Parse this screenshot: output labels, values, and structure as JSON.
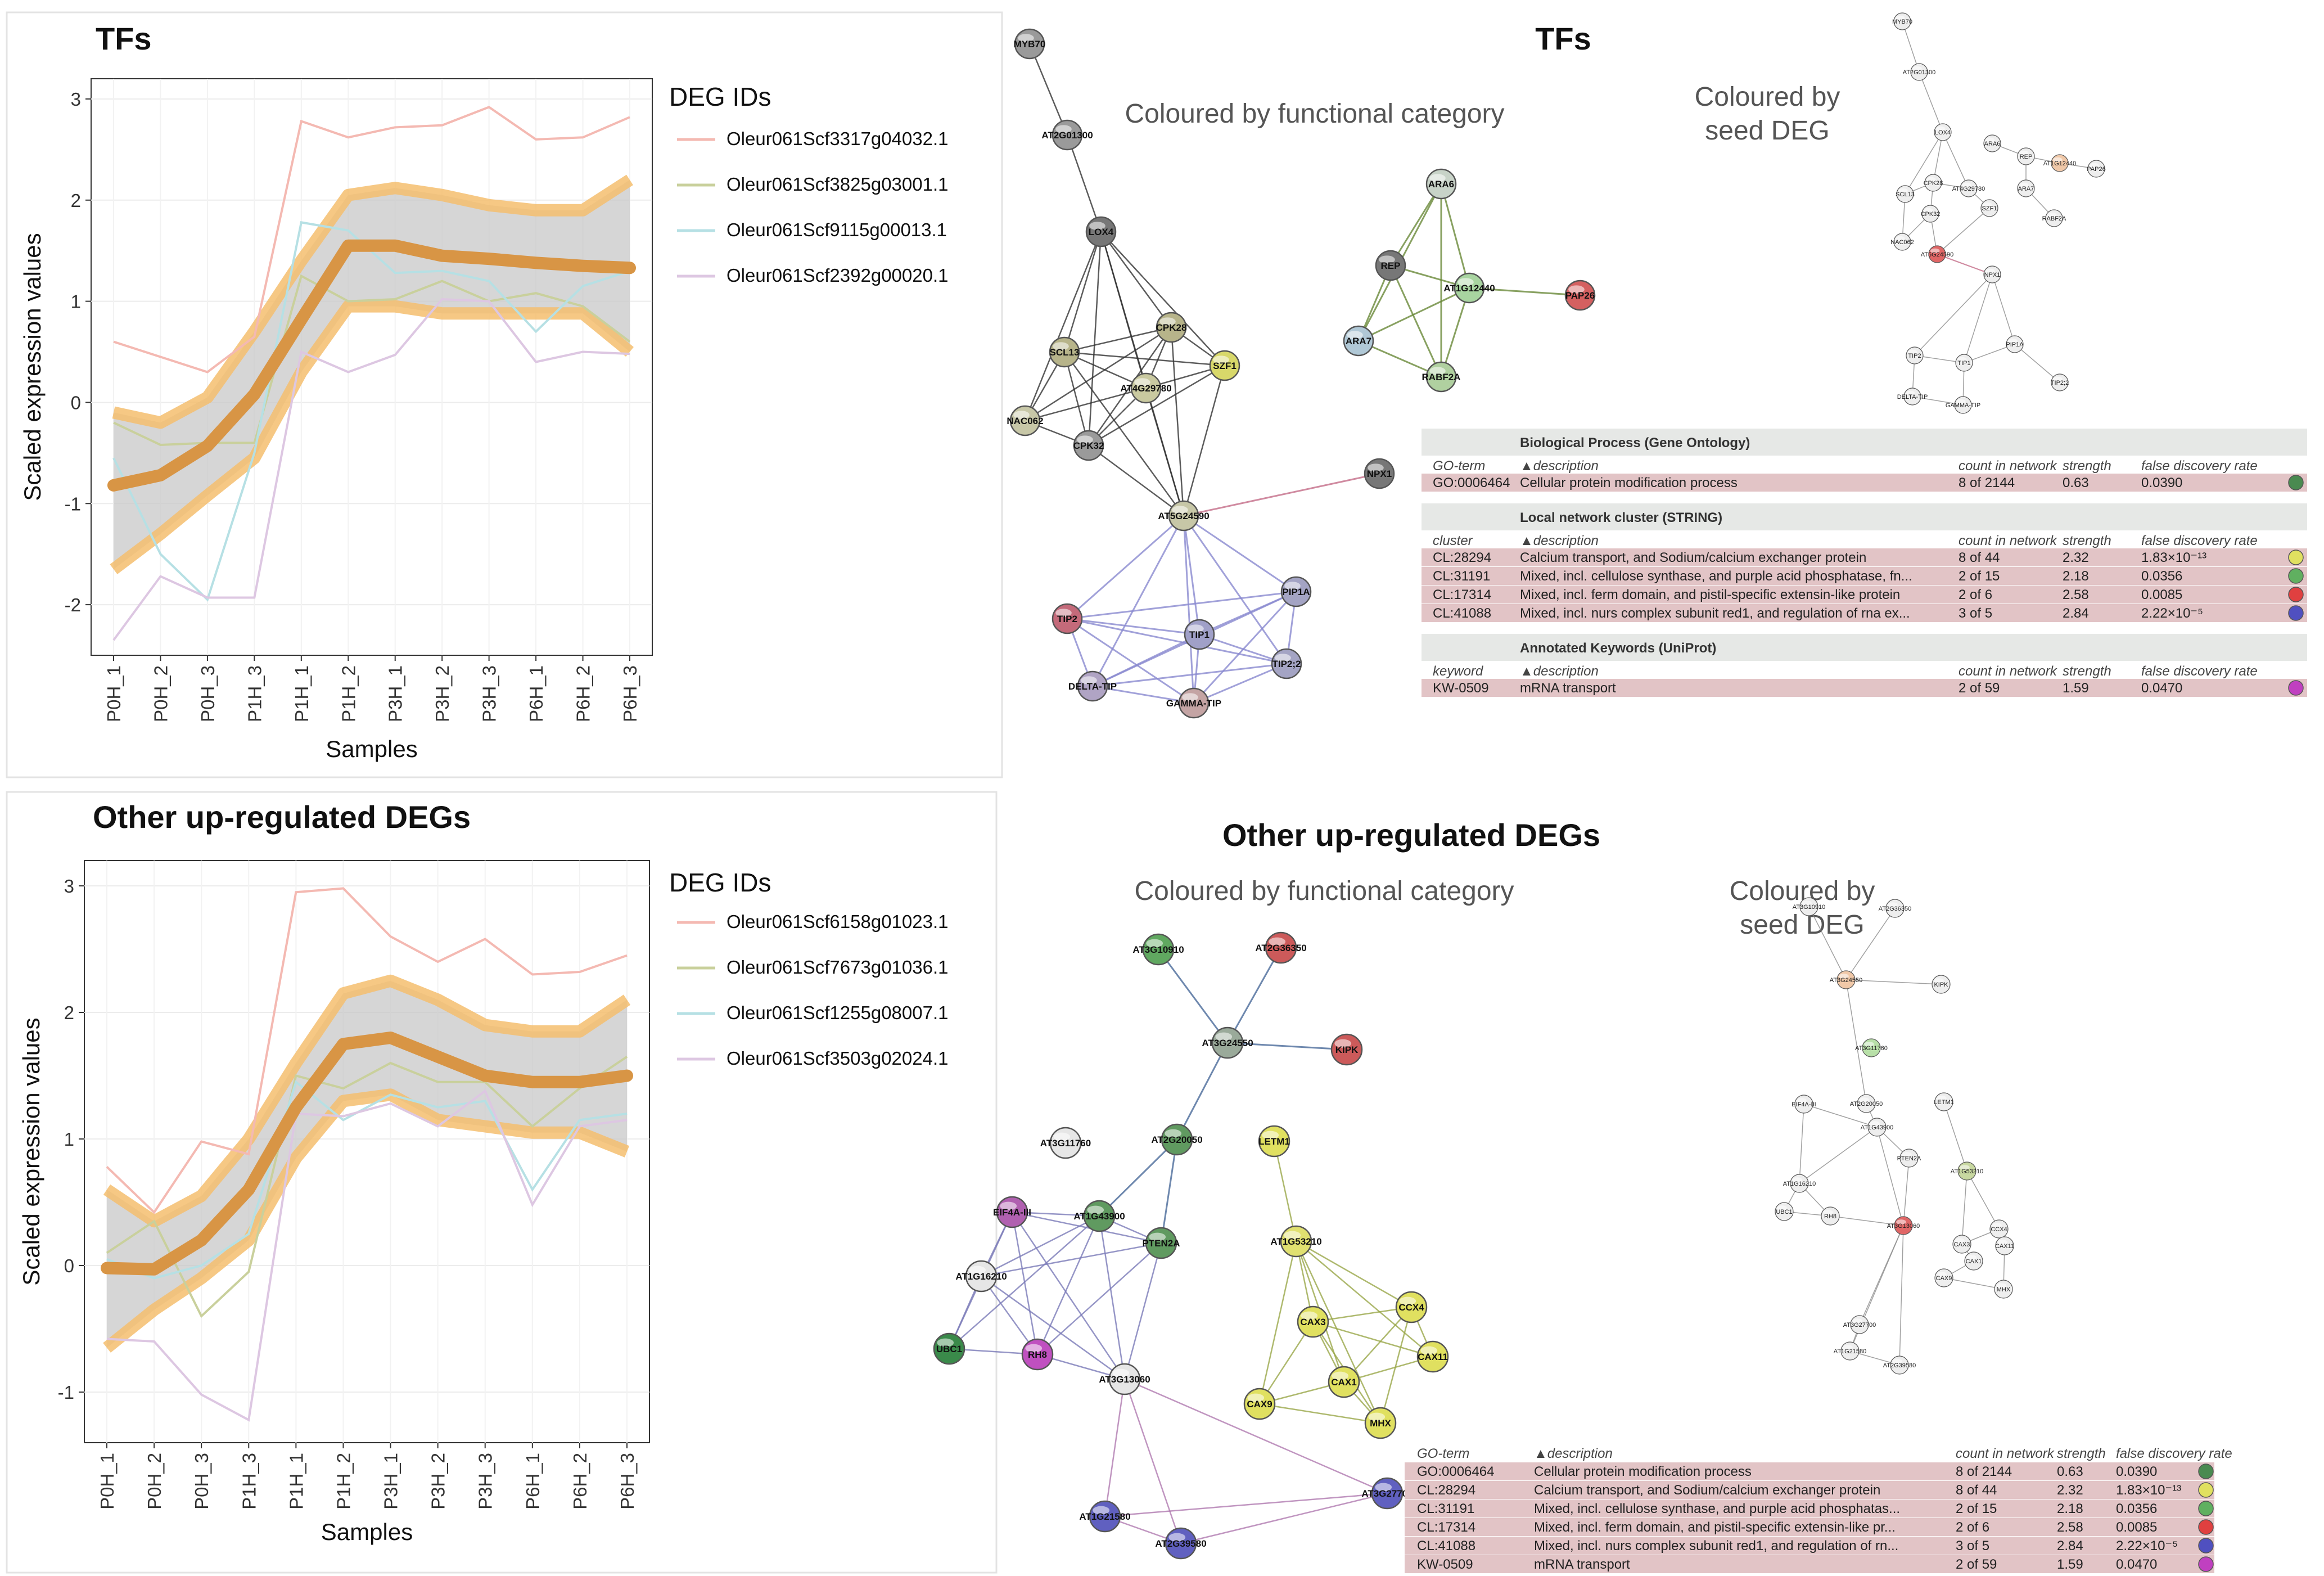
{
  "chart_data": [
    {
      "type": "line",
      "title": "TFs",
      "xlabel": "Samples",
      "ylabel": "Scaled expression values",
      "ylim": [
        -2.5,
        3.2
      ],
      "categories": [
        "P0H_1",
        "P0H_2",
        "P0H_3",
        "P1H_3",
        "P1H_1",
        "P1H_2",
        "P3H_1",
        "P3H_2",
        "P3H_3",
        "P6H_1",
        "P6H_2",
        "P6H_3"
      ],
      "yticks": [
        "-2",
        "-1",
        "0",
        "1",
        "2",
        "3"
      ],
      "legend_title": "DEG IDs",
      "series": [
        {
          "name": "Oleur061Scf3317g04032.1",
          "color": "#f4b9b2",
          "values": [
            0.6,
            0.45,
            0.3,
            0.65,
            2.78,
            2.62,
            2.72,
            2.74,
            2.92,
            2.6,
            2.62,
            2.82
          ]
        },
        {
          "name": "Oleur061Scf3825g03001.1",
          "color": "#c9d09c",
          "values": [
            -0.2,
            -0.42,
            -0.4,
            -0.4,
            1.25,
            1.0,
            1.02,
            1.2,
            1.0,
            1.08,
            0.95,
            0.6
          ]
        },
        {
          "name": "Oleur061Scf9115g00013.1",
          "color": "#b6e0e4",
          "values": [
            -0.55,
            -1.5,
            -1.95,
            -0.5,
            1.78,
            1.7,
            1.28,
            1.3,
            1.2,
            0.7,
            1.15,
            1.3
          ]
        },
        {
          "name": "Oleur061Scf2392g00020.1",
          "color": "#ddc7e2",
          "values": [
            -2.35,
            -1.72,
            -1.93,
            -1.93,
            0.5,
            0.3,
            0.47,
            1.02,
            1.0,
            0.4,
            0.5,
            0.48
          ]
        }
      ],
      "mean": [
        -0.82,
        -0.72,
        -0.43,
        0.08,
        0.82,
        1.55,
        1.55,
        1.45,
        1.42,
        1.38,
        1.35,
        1.33
      ],
      "band_upper": [
        -0.1,
        -0.2,
        0.05,
        0.7,
        1.4,
        2.05,
        2.12,
        2.05,
        1.95,
        1.9,
        1.9,
        2.2
      ],
      "band_lower": [
        -1.65,
        -1.3,
        -0.92,
        -0.55,
        0.3,
        0.95,
        0.95,
        0.88,
        0.88,
        0.88,
        0.88,
        0.5
      ]
    },
    {
      "type": "line",
      "title": "Other up-regulated DEGs",
      "xlabel": "Samples",
      "ylabel": "Scaled expression values",
      "ylim": [
        -1.4,
        3.2
      ],
      "categories": [
        "P0H_1",
        "P0H_2",
        "P0H_3",
        "P1H_3",
        "P1H_1",
        "P1H_2",
        "P3H_1",
        "P3H_2",
        "P3H_3",
        "P6H_1",
        "P6H_2",
        "P6H_3"
      ],
      "yticks": [
        "-1",
        "0",
        "1",
        "2",
        "3"
      ],
      "legend_title": "DEG IDs",
      "series": [
        {
          "name": "Oleur061Scf6158g01023.1",
          "color": "#f4b9b2",
          "values": [
            0.78,
            0.42,
            0.98,
            0.88,
            2.95,
            2.98,
            2.6,
            2.4,
            2.58,
            2.3,
            2.32,
            2.45
          ]
        },
        {
          "name": "Oleur061Scf7673g01036.1",
          "color": "#c9d09c",
          "values": [
            0.1,
            0.35,
            -0.4,
            -0.05,
            1.5,
            1.4,
            1.6,
            1.45,
            1.45,
            1.1,
            1.4,
            1.65
          ]
        },
        {
          "name": "Oleur061Scf1255g08007.1",
          "color": "#b6e0e4",
          "values": [
            0.05,
            -0.1,
            0.0,
            0.25,
            1.45,
            1.15,
            1.35,
            1.25,
            1.3,
            0.6,
            1.15,
            1.2
          ]
        },
        {
          "name": "Oleur061Scf3503g02024.1",
          "color": "#ddc7e2",
          "values": [
            -0.58,
            -0.6,
            -1.02,
            -1.22,
            1.2,
            1.18,
            1.28,
            1.1,
            1.38,
            0.48,
            1.1,
            1.15
          ]
        }
      ],
      "mean": [
        -0.02,
        -0.03,
        0.2,
        0.6,
        1.25,
        1.75,
        1.8,
        1.65,
        1.5,
        1.45,
        1.45,
        1.5
      ],
      "band_upper": [
        0.6,
        0.35,
        0.55,
        1.0,
        1.6,
        2.15,
        2.25,
        2.1,
        1.9,
        1.85,
        1.85,
        2.1
      ],
      "band_lower": [
        -0.65,
        -0.35,
        -0.1,
        0.2,
        0.85,
        1.3,
        1.35,
        1.15,
        1.1,
        1.05,
        1.05,
        0.9
      ]
    }
  ],
  "networks": {
    "top": {
      "title": "TFs",
      "functional_title": "Coloured by functional category",
      "seed_title_line1": "Coloured by",
      "seed_title_line2": "seed DEG",
      "nodes": [
        {
          "label": "MYB70",
          "color": "#9a9a9a"
        },
        {
          "label": "AT2G01300",
          "color": "#9a9a9a"
        },
        {
          "label": "LOX4",
          "color": "#777777"
        },
        {
          "label": "CPK28",
          "color": "#b7b48a"
        },
        {
          "label": "SCL13",
          "color": "#b7b48a"
        },
        {
          "label": "SZF1",
          "color": "#d8d86a"
        },
        {
          "label": "AT4G29780",
          "color": "#c9c9a0"
        },
        {
          "label": "NAC062",
          "color": "#c7c7a7"
        },
        {
          "label": "CPK32",
          "color": "#9a9a9a"
        },
        {
          "label": "AT5G24590",
          "color": "#c7c7a7"
        },
        {
          "label": "NPX1",
          "color": "#777777"
        },
        {
          "label": "ARA6",
          "color": "#c8d3c8"
        },
        {
          "label": "REP",
          "color": "#777777"
        },
        {
          "label": "AT1G12440",
          "color": "#a8d4a0"
        },
        {
          "label": "PAP26",
          "color": "#d46060"
        },
        {
          "label": "ARA7",
          "color": "#b0c8d6"
        },
        {
          "label": "RABF2A",
          "color": "#b0d0a0"
        },
        {
          "label": "PIP1A",
          "color": "#a4a4c4"
        },
        {
          "label": "TIP2",
          "color": "#c46a7a"
        },
        {
          "label": "TIP1",
          "color": "#a0a0c8"
        },
        {
          "label": "TIP2;2",
          "color": "#a4a4c4"
        },
        {
          "label": "DELTA-TIP",
          "color": "#b0a4c4"
        },
        {
          "label": "GAMMA-TIP",
          "color": "#c4a4a4"
        }
      ],
      "mini_nodes": [
        "MYB70",
        "AT2G01300",
        "LOX4",
        "SCL13",
        "CPK28",
        "AT4G29780",
        "SZF1",
        "NAC062",
        "CPK32",
        "AT5G24590",
        "NPX1",
        "ARA6",
        "REP",
        "AT1G12440",
        "PAP26",
        "ARA7",
        "RABF2A",
        "TIP2",
        "TIP1",
        "PIP1A",
        "TIP2;2",
        "DELTA-TIP",
        "GAMMA-TIP"
      ],
      "table": {
        "sections": [
          {
            "header": "Biological Process (Gene Ontology)",
            "col1": "GO-term",
            "rows": [
              {
                "id": "GO:0006464",
                "description": "Cellular protein modification process",
                "count": "8 of 2144",
                "strength": "0.63",
                "fdr": "0.0390",
                "swatch": "#4a8a50"
              }
            ]
          },
          {
            "header": "Local network cluster (STRING)",
            "col1": "cluster",
            "rows": [
              {
                "id": "CL:28294",
                "description": "Calcium transport, and Sodium/calcium exchanger protein",
                "count": "8 of 44",
                "strength": "2.32",
                "fdr": "1.83×10⁻¹³",
                "swatch": "#e0e060"
              },
              {
                "id": "CL:31191",
                "description": "Mixed, incl. cellulose synthase, and purple acid phosphatase, fn...",
                "count": "2 of 15",
                "strength": "2.18",
                "fdr": "0.0356",
                "swatch": "#60b060"
              },
              {
                "id": "CL:17314",
                "description": "Mixed, incl. ferm domain, and pistil-specific extensin-like protein",
                "count": "2 of 6",
                "strength": "2.58",
                "fdr": "0.0085",
                "swatch": "#e04040"
              },
              {
                "id": "CL:41088",
                "description": "Mixed, incl. nurs complex subunit red1, and regulation of rna ex...",
                "count": "3 of 5",
                "strength": "2.84",
                "fdr": "2.22×10⁻⁵",
                "swatch": "#5050c0"
              }
            ]
          },
          {
            "header": "Annotated Keywords (UniProt)",
            "col1": "keyword",
            "rows": [
              {
                "id": "KW-0509",
                "description": "mRNA transport",
                "count": "2 of 59",
                "strength": "1.59",
                "fdr": "0.0470",
                "swatch": "#c040c0"
              }
            ]
          }
        ],
        "col_desc": "▲description",
        "col_count": "count in network",
        "col_strength": "strength",
        "col_fdr": "false discovery rate"
      }
    },
    "bottom": {
      "title": "Other up-regulated DEGs",
      "functional_title": "Coloured by functional category",
      "seed_title_line1": "Coloured by",
      "seed_title_line2": "seed DEG",
      "nodes": [
        {
          "label": "AT3G10910",
          "color": "#60a860"
        },
        {
          "label": "AT2G36350",
          "color": "#cc5a5a"
        },
        {
          "label": "AT3G24550",
          "color": "#9aaa9a"
        },
        {
          "label": "KIPK",
          "color": "#cc5a5a"
        },
        {
          "label": "AT3G11760",
          "color": "#e6e6e6"
        },
        {
          "label": "AT2G20050",
          "color": "#609a60"
        },
        {
          "label": "LETM1",
          "color": "#e0e060"
        },
        {
          "label": "EIF4A-III",
          "color": "#b060b0"
        },
        {
          "label": "AT1G43900",
          "color": "#609a60"
        },
        {
          "label": "PTEN2A",
          "color": "#609a60"
        },
        {
          "label": "AT1G53210",
          "color": "#e0e070"
        },
        {
          "label": "AT1G16210",
          "color": "#e6e6e6"
        },
        {
          "label": "CAX3",
          "color": "#e0e060"
        },
        {
          "label": "CCX4",
          "color": "#e0e060"
        },
        {
          "label": "CAX11",
          "color": "#e0e060"
        },
        {
          "label": "UBC1",
          "color": "#3a8a4a"
        },
        {
          "label": "RH8",
          "color": "#c050c0"
        },
        {
          "label": "CAX1",
          "color": "#e0e060"
        },
        {
          "label": "AT3G13060",
          "color": "#e6e6e6"
        },
        {
          "label": "CAX9",
          "color": "#e0e060"
        },
        {
          "label": "MHX",
          "color": "#e0e060"
        },
        {
          "label": "AT3G27700",
          "color": "#6060c0"
        },
        {
          "label": "AT1G21580",
          "color": "#6060c0"
        },
        {
          "label": "AT2G39580",
          "color": "#6060c0"
        }
      ],
      "mini_nodes": [
        "AT3G10910",
        "AT2G36350",
        "AT3G24550",
        "KIPK",
        "AT3G11760",
        "AT2G20050",
        "LETM1",
        "EIF4A-III",
        "AT1G43900",
        "PTEN2A",
        "AT1G53210",
        "AT1G16210",
        "CAX3",
        "CCX4",
        "CAX11",
        "UBC1",
        "RH8",
        "CAX1",
        "AT3G13060",
        "CAX9",
        "MHX",
        "AT3G27700",
        "AT1G21580",
        "AT2G39580"
      ],
      "table": {
        "col_go": "GO-term",
        "col_desc": "▲description",
        "col_count": "count in network",
        "col_strength": "strength",
        "col_fdr": "false discovery rate",
        "rows": [
          {
            "id": "GO:0006464",
            "description": "Cellular protein modification process",
            "count": "8 of 2144",
            "strength": "0.63",
            "fdr": "0.0390",
            "swatch": "#4a8a50"
          },
          {
            "id": "CL:28294",
            "description": "Calcium transport, and Sodium/calcium exchanger protein",
            "count": "8 of 44",
            "strength": "2.32",
            "fdr": "1.83×10⁻¹³",
            "swatch": "#e0e060"
          },
          {
            "id": "CL:31191",
            "description": "Mixed, incl. cellulose synthase, and purple acid phosphatas...",
            "count": "2 of 15",
            "strength": "2.18",
            "fdr": "0.0356",
            "swatch": "#60b060"
          },
          {
            "id": "CL:17314",
            "description": "Mixed, incl. ferm domain, and pistil-specific extensin-like pr...",
            "count": "2 of 6",
            "strength": "2.58",
            "fdr": "0.0085",
            "swatch": "#e04040"
          },
          {
            "id": "CL:41088",
            "description": "Mixed, incl. nurs complex subunit red1, and regulation of rn...",
            "count": "3 of 5",
            "strength": "2.84",
            "fdr": "2.22×10⁻⁵",
            "swatch": "#5050c0"
          },
          {
            "id": "KW-0509",
            "description": "mRNA transport",
            "count": "2 of 59",
            "strength": "1.59",
            "fdr": "0.0470",
            "swatch": "#c040c0"
          }
        ]
      }
    }
  }
}
